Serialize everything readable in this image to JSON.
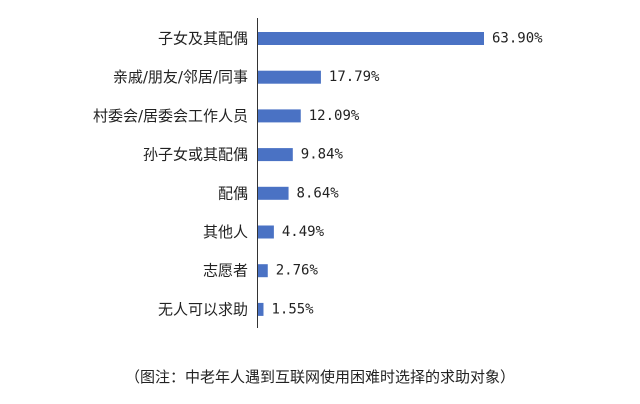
{
  "chart_data": {
    "type": "bar",
    "orientation": "horizontal",
    "categories": [
      "子女及其配偶",
      "亲戚/朋友/邻居/同事",
      "村委会/居委会工作人员",
      "孙子女或其配偶",
      "配偶",
      "其他人",
      "志愿者",
      "无人可以求助"
    ],
    "values": [
      63.9,
      17.79,
      12.09,
      9.84,
      8.64,
      4.49,
      2.76,
      1.55
    ],
    "value_labels": [
      "63.90%",
      "17.79%",
      "12.09%",
      "9.84%",
      "8.64%",
      "4.49%",
      "2.76%",
      "1.55%"
    ],
    "bar_color": "#4a72c4",
    "grid": false,
    "legend": "none",
    "title": "",
    "xlabel": "",
    "ylabel": "",
    "xlim": [
      0,
      63.9
    ]
  },
  "note": "（图注：中老年人遇到互联网使用困难时选择的求助对象）"
}
